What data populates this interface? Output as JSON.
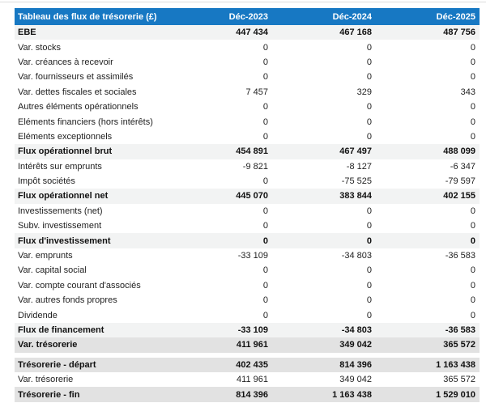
{
  "meta": {
    "header_bg_color": "#1778c3",
    "header_text_color": "#ffffff",
    "subtotal_row_bg_color": "#f2f3f3",
    "total_row_bg_color": "#e2e2e2"
  },
  "chart_data": {
    "type": "table",
    "title": "Tableau des flux de trésorerie (£)",
    "currency": "£",
    "columns": [
      "Déc-2023",
      "Déc-2024",
      "Déc-2025"
    ],
    "rows": [
      {
        "label": "EBE",
        "values": [
          "447 434",
          "467 168",
          "487 756"
        ],
        "style": "subtotal"
      },
      {
        "label": "Var. stocks",
        "values": [
          "0",
          "0",
          "0"
        ],
        "style": "normal"
      },
      {
        "label": "Var. créances à recevoir",
        "values": [
          "0",
          "0",
          "0"
        ],
        "style": "normal"
      },
      {
        "label": "Var. fournisseurs et assimilés",
        "values": [
          "0",
          "0",
          "0"
        ],
        "style": "normal"
      },
      {
        "label": "Var. dettes fiscales et sociales",
        "values": [
          "7 457",
          "329",
          "343"
        ],
        "style": "normal"
      },
      {
        "label": "Autres éléments opérationnels",
        "values": [
          "0",
          "0",
          "0"
        ],
        "style": "normal"
      },
      {
        "label": "Eléments financiers (hors intérêts)",
        "values": [
          "0",
          "0",
          "0"
        ],
        "style": "normal"
      },
      {
        "label": "Eléments exceptionnels",
        "values": [
          "0",
          "0",
          "0"
        ],
        "style": "normal"
      },
      {
        "label": "Flux opérationnel brut",
        "values": [
          "454 891",
          "467 497",
          "488 099"
        ],
        "style": "subtotal"
      },
      {
        "label": "Intérêts sur emprunts",
        "values": [
          "-9 821",
          "-8 127",
          "-6 347"
        ],
        "style": "normal"
      },
      {
        "label": "Impôt sociétés",
        "values": [
          "0",
          "-75 525",
          "-79 597"
        ],
        "style": "normal"
      },
      {
        "label": "Flux opérationnel net",
        "values": [
          "445 070",
          "383 844",
          "402 155"
        ],
        "style": "subtotal"
      },
      {
        "label": "Investissements (net)",
        "values": [
          "0",
          "0",
          "0"
        ],
        "style": "normal"
      },
      {
        "label": "Subv. investissement",
        "values": [
          "0",
          "0",
          "0"
        ],
        "style": "normal"
      },
      {
        "label": "Flux d'investissement",
        "values": [
          "0",
          "0",
          "0"
        ],
        "style": "subtotal"
      },
      {
        "label": "Var. emprunts",
        "values": [
          "-33 109",
          "-34 803",
          "-36 583"
        ],
        "style": "normal"
      },
      {
        "label": "Var. capital social",
        "values": [
          "0",
          "0",
          "0"
        ],
        "style": "normal"
      },
      {
        "label": "Var. compte courant d'associés",
        "values": [
          "0",
          "0",
          "0"
        ],
        "style": "normal"
      },
      {
        "label": "Var. autres fonds propres",
        "values": [
          "0",
          "0",
          "0"
        ],
        "style": "normal"
      },
      {
        "label": "Dividende",
        "values": [
          "0",
          "0",
          "0"
        ],
        "style": "normal"
      },
      {
        "label": "Flux de financement",
        "values": [
          "-33 109",
          "-34 803",
          "-36 583"
        ],
        "style": "subtotal"
      },
      {
        "label": "Var. trésorerie",
        "values": [
          "411 961",
          "349 042",
          "365 572"
        ],
        "style": "total"
      },
      {
        "label": "Trésorerie - départ",
        "values": [
          "402 435",
          "814 396",
          "1 163 438"
        ],
        "style": "total",
        "group_break": true
      },
      {
        "label": "Var. trésorerie",
        "values": [
          "411 961",
          "349 042",
          "365 572"
        ],
        "style": "normal"
      },
      {
        "label": "Trésorerie - fin",
        "values": [
          "814 396",
          "1 163 438",
          "1 529 010"
        ],
        "style": "total"
      }
    ]
  }
}
